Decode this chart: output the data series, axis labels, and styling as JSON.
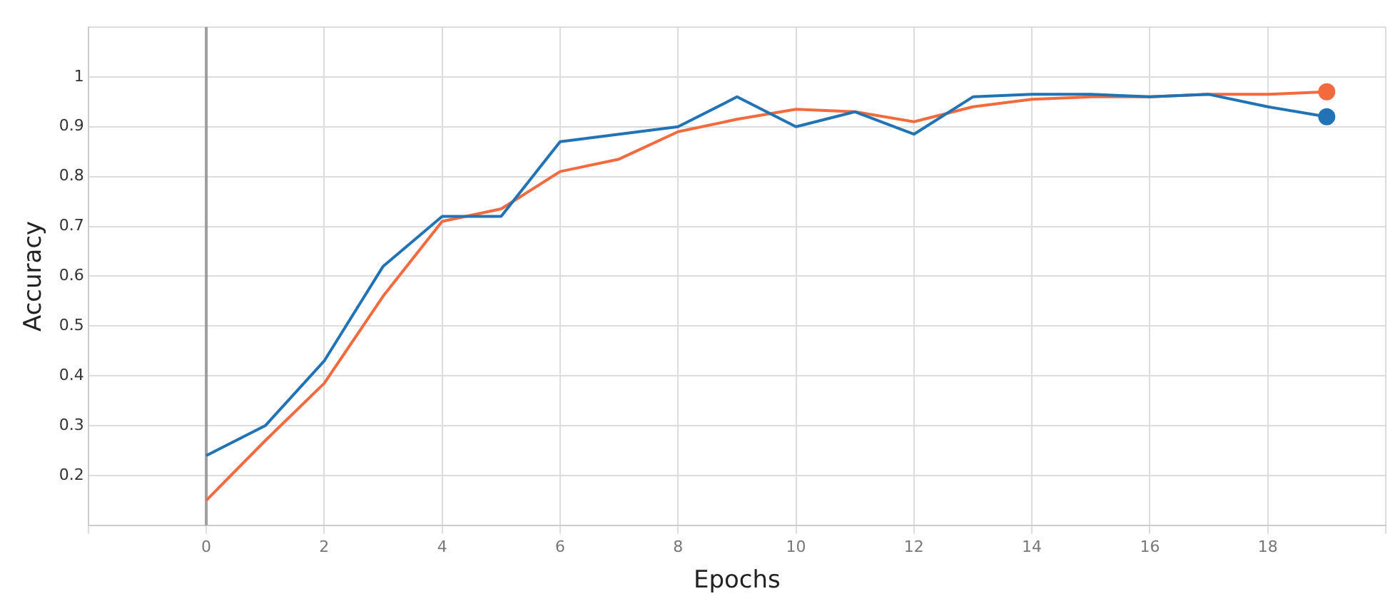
{
  "chart_data": {
    "type": "line",
    "xlabel": "Epochs",
    "ylabel": "Accuracy",
    "x": [
      0,
      1,
      2,
      3,
      4,
      5,
      6,
      7,
      8,
      9,
      10,
      11,
      12,
      13,
      14,
      15,
      16,
      17,
      18,
      19
    ],
    "series": [
      {
        "color": "#2273b5",
        "values": [
          0.24,
          0.3,
          0.43,
          0.62,
          0.72,
          0.72,
          0.87,
          0.885,
          0.9,
          0.96,
          0.9,
          0.93,
          0.885,
          0.96,
          0.965,
          0.965,
          0.96,
          0.965,
          0.94,
          0.92
        ]
      },
      {
        "color": "#f26a3d",
        "values": [
          0.15,
          0.27,
          0.385,
          0.56,
          0.71,
          0.735,
          0.81,
          0.835,
          0.89,
          0.915,
          0.935,
          0.93,
          0.91,
          0.94,
          0.955,
          0.96,
          0.96,
          0.965,
          0.965,
          0.97
        ]
      }
    ],
    "xlim": [
      -2,
      20
    ],
    "xticks": [
      {
        "value": -2,
        "label": null
      },
      0,
      2,
      4,
      6,
      8,
      10,
      12,
      14,
      16,
      18,
      {
        "value": 20,
        "label": null
      }
    ],
    "ylim": [
      0.1,
      1.1
    ],
    "yticks": [
      {
        "value": 0.1,
        "label": null
      },
      0.2,
      0.3,
      0.4,
      0.5,
      0.6,
      0.7,
      0.8,
      0.9,
      1,
      {
        "value": 1.1,
        "label": null
      }
    ],
    "ref_lines": [
      {
        "axis": "x",
        "value": 0,
        "color": "#9e9e9e"
      }
    ],
    "grid": true,
    "legend": false,
    "line_style": "solid"
  }
}
